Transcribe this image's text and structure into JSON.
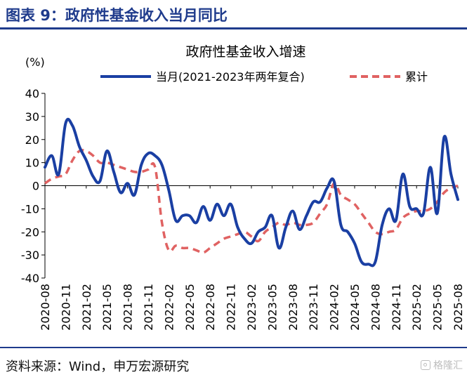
{
  "header": {
    "title": "图表 9：政府性基金收入当月同比"
  },
  "footer": {
    "source": "资料来源：Wind，申万宏源研究",
    "watermark": "格隆汇"
  },
  "colors": {
    "brand": "#1f3b8c",
    "series_monthly": "#1a3fa3",
    "series_cumulative": "#e06262"
  },
  "chart_data": {
    "type": "line",
    "title": "政府性基金收入增速",
    "ylabel": "(%)",
    "xlabel": "",
    "ylim": [
      -40,
      40
    ],
    "yticks": [
      40,
      30,
      20,
      10,
      0,
      -10,
      -20,
      -30,
      -40
    ],
    "xtick_labels": [
      "2020-08",
      "2020-11",
      "2021-02",
      "2021-05",
      "2021-08",
      "2021-11",
      "2022-02",
      "2022-05",
      "2022-08",
      "2022-11",
      "2023-02",
      "2023-05",
      "2023-08",
      "2023-11",
      "2024-02",
      "2024-05",
      "2024-08",
      "2024-11",
      "2025-02",
      "2025-05",
      "2025-08"
    ],
    "legend": "top",
    "grid": false,
    "x": [
      "2020-08",
      "2020-09",
      "2020-10",
      "2020-11",
      "2020-12",
      "2021-01",
      "2021-02",
      "2021-03",
      "2021-04",
      "2021-05",
      "2021-06",
      "2021-07",
      "2021-08",
      "2021-09",
      "2021-10",
      "2021-11",
      "2021-12",
      "2022-01",
      "2022-02",
      "2022-03",
      "2022-04",
      "2022-05",
      "2022-06",
      "2022-07",
      "2022-08",
      "2022-09",
      "2022-10",
      "2022-11",
      "2022-12",
      "2023-01",
      "2023-02",
      "2023-03",
      "2023-04",
      "2023-05",
      "2023-06",
      "2023-07",
      "2023-08",
      "2023-09",
      "2023-10",
      "2023-11",
      "2023-12",
      "2024-01",
      "2024-02",
      "2024-03",
      "2024-04",
      "2024-05",
      "2024-06",
      "2024-07",
      "2024-08",
      "2024-09",
      "2024-10",
      "2024-11",
      "2024-12",
      "2025-01",
      "2025-02",
      "2025-03",
      "2025-04",
      "2025-05",
      "2025-06",
      "2025-07",
      "2025-08"
    ],
    "series": [
      {
        "name": "当月(2021-2023年两年复合)",
        "style": "solid",
        "values": [
          8,
          13,
          5,
          27,
          26,
          17,
          11,
          4,
          2,
          15,
          6,
          -3,
          1,
          -4,
          9,
          14,
          13,
          9,
          -2,
          -15,
          -13,
          -13,
          -16,
          -9,
          -15,
          -8,
          -13,
          -8,
          -18,
          -23,
          -25,
          -20,
          -18,
          -13,
          -27,
          -18,
          -11,
          -19,
          -13,
          -7,
          -7,
          -1,
          2,
          -17,
          -20,
          -25,
          -33,
          -34,
          -33,
          -17,
          -10,
          -15,
          5,
          -9,
          -10,
          -12,
          8,
          -12,
          21,
          5,
          -6
        ]
      },
      {
        "name": "累计",
        "style": "dashed",
        "values": [
          1,
          3,
          4,
          5,
          11,
          15,
          15,
          13,
          10,
          10,
          9,
          8,
          7,
          6,
          6,
          7,
          8,
          -16,
          -28,
          -26,
          -27,
          -27,
          -28,
          -29,
          -27,
          -25,
          -23,
          -22,
          -21,
          -20,
          -22,
          -24,
          -20,
          -18,
          -16,
          -17,
          -16,
          -17,
          -17,
          -16,
          -12,
          -8,
          1,
          -4,
          -6,
          -8,
          -12,
          -16,
          -20,
          -21,
          -20,
          -19,
          -14,
          -12,
          -11,
          -11,
          -10,
          -7,
          -3,
          -1,
          0
        ]
      }
    ]
  }
}
